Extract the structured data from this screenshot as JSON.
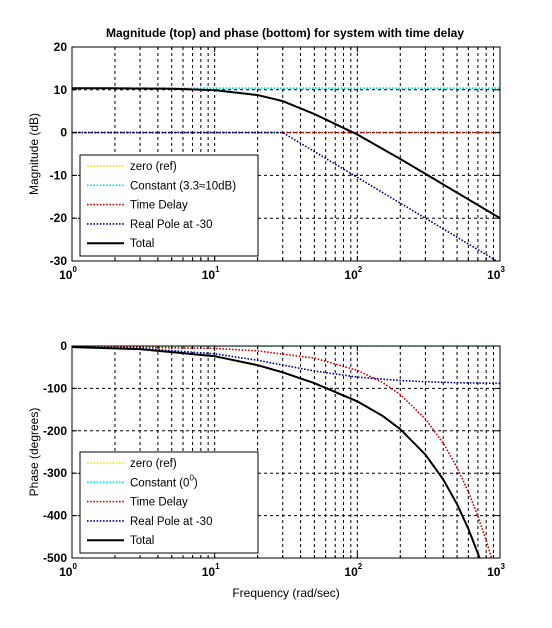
{
  "figure": {
    "title": "Magnitude (top) and phase (bottom) for system with time delay"
  },
  "chart_data": [
    {
      "type": "line",
      "name": "magnitude",
      "title": "Magnitude (top) and phase (bottom) for system with time delay",
      "xlabel": "",
      "ylabel": "Magnitude (dB)",
      "xscale": "log",
      "xlim": [
        1,
        1000
      ],
      "ylim": [
        -30,
        20
      ],
      "x_ticks": [
        {
          "base": "10",
          "exp": "0"
        },
        {
          "base": "10",
          "exp": "1"
        },
        {
          "base": "10",
          "exp": "2"
        },
        {
          "base": "10",
          "exp": "3"
        }
      ],
      "y_ticks": [
        "20",
        "10",
        "0",
        "-10",
        "-20",
        "-30"
      ],
      "grid": true,
      "legend_position": "bottom-left",
      "series": [
        {
          "name": "zero (ref)",
          "color": "#e6e600",
          "style": "dotted",
          "x": [
            1,
            1000
          ],
          "y": [
            0,
            0
          ]
        },
        {
          "name": "Constant (3.3≈10dB)",
          "color": "#00e0e0",
          "style": "dotted",
          "x": [
            1,
            1000
          ],
          "y": [
            10.37,
            10.37
          ]
        },
        {
          "name": "Time Delay",
          "color": "#cc0000",
          "style": "dotted",
          "x": [
            1,
            1000
          ],
          "y": [
            0,
            0
          ]
        },
        {
          "name": "Real Pole at -30",
          "color": "#00008b",
          "style": "dotted",
          "x": [
            1,
            30,
            100,
            300,
            1000
          ],
          "y": [
            0,
            0,
            -10.46,
            -20,
            -30.46
          ]
        },
        {
          "name": "Total",
          "color": "#000000",
          "style": "solid",
          "x": [
            1,
            2,
            5,
            10,
            20,
            30,
            50,
            100,
            200,
            300,
            500,
            1000
          ],
          "y": [
            10.37,
            10.35,
            10.25,
            9.91,
            8.77,
            7.36,
            4.33,
            -0.45,
            -6.16,
            -9.63,
            -14.03,
            -19.99
          ]
        }
      ]
    },
    {
      "type": "line",
      "name": "phase",
      "title": "",
      "xlabel": "Frequency (rad/sec)",
      "ylabel": "Phase (degrees)",
      "xscale": "log",
      "xlim": [
        1,
        1000
      ],
      "ylim": [
        -500,
        0
      ],
      "x_ticks": [
        {
          "base": "10",
          "exp": "0"
        },
        {
          "base": "10",
          "exp": "1"
        },
        {
          "base": "10",
          "exp": "2"
        },
        {
          "base": "10",
          "exp": "3"
        }
      ],
      "y_ticks": [
        "0",
        "-100",
        "-200",
        "-300",
        "-400",
        "-500"
      ],
      "grid": true,
      "legend_position": "bottom-left",
      "series": [
        {
          "name": "zero (ref)",
          "color": "#e6e600",
          "style": "dotted",
          "x": [
            1,
            1000
          ],
          "y": [
            0,
            0
          ]
        },
        {
          "name": "Constant (0",
          "name_superscript": "0",
          "name_suffix": ")",
          "color": "#00e0e0",
          "style": "dotted",
          "x": [
            1,
            1000
          ],
          "y": [
            0,
            0
          ]
        },
        {
          "name": "Time Delay",
          "color": "#cc0000",
          "style": "dotted",
          "x": [
            1,
            10,
            20,
            50,
            100,
            150,
            200,
            300,
            400,
            500,
            600,
            700,
            800,
            900
          ],
          "y": [
            -0.57,
            -5.73,
            -11.5,
            -28.6,
            -57.3,
            -85.9,
            -114.6,
            -171.9,
            -229.2,
            -286.5,
            -343.8,
            -401.1,
            -458.4,
            -515.7
          ]
        },
        {
          "name": "Real Pole at -30",
          "color": "#00008b",
          "style": "dotted",
          "x": [
            1,
            3,
            10,
            20,
            30,
            50,
            100,
            200,
            300,
            500,
            1000
          ],
          "y": [
            -1.9,
            -5.7,
            -18.4,
            -33.7,
            -45,
            -59,
            -73.3,
            -81.5,
            -84.3,
            -86.6,
            -88.3
          ]
        },
        {
          "name": "Total",
          "color": "#000000",
          "style": "solid",
          "x": [
            1,
            3,
            10,
            20,
            30,
            50,
            100,
            150,
            200,
            300,
            400,
            500,
            600,
            700,
            750
          ],
          "y": [
            -2.5,
            -7.4,
            -24.1,
            -45.2,
            -62.2,
            -87.6,
            -130.6,
            -164.6,
            -196.1,
            -256.2,
            -314.8,
            -373.1,
            -431.2,
            -489.3,
            -518
          ]
        }
      ]
    }
  ]
}
